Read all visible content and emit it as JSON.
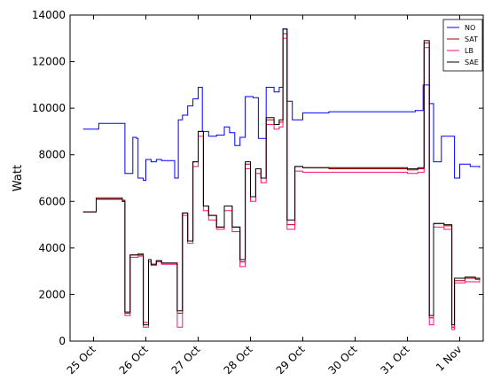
{
  "chart_data": {
    "type": "line",
    "title": "",
    "xlabel": "",
    "ylabel": "Watt",
    "xlim": [
      24.55,
      32.45
    ],
    "ylim": [
      0,
      14000
    ],
    "yticks": [
      0,
      2000,
      4000,
      6000,
      8000,
      10000,
      12000,
      14000
    ],
    "xticks": [
      {
        "value": 25,
        "label": "25 Oct"
      },
      {
        "value": 26,
        "label": "26 Oct"
      },
      {
        "value": 27,
        "label": "27 Oct"
      },
      {
        "value": 28,
        "label": "28 Oct"
      },
      {
        "value": 29,
        "label": "29 Oct"
      },
      {
        "value": 30,
        "label": "30 Oct"
      },
      {
        "value": 31,
        "label": "31 Oct"
      },
      {
        "value": 32,
        "label": "1 Nov"
      }
    ],
    "grid": false,
    "legend_position": "top-right",
    "series": [
      {
        "name": "NO",
        "color": "#0000ff",
        "points": [
          [
            24.8,
            9100
          ],
          [
            25.0,
            9100
          ],
          [
            25.1,
            9350
          ],
          [
            25.55,
            9350
          ],
          [
            25.6,
            7200
          ],
          [
            25.7,
            7200
          ],
          [
            25.75,
            8750
          ],
          [
            25.82,
            8700
          ],
          [
            25.85,
            7000
          ],
          [
            25.95,
            6900
          ],
          [
            26.0,
            7800
          ],
          [
            26.1,
            7700
          ],
          [
            26.2,
            7800
          ],
          [
            26.3,
            7750
          ],
          [
            26.5,
            7750
          ],
          [
            26.55,
            7000
          ],
          [
            26.62,
            9500
          ],
          [
            26.7,
            9700
          ],
          [
            26.8,
            10100
          ],
          [
            26.9,
            10400
          ],
          [
            27.0,
            10900
          ],
          [
            27.08,
            9000
          ],
          [
            27.2,
            8800
          ],
          [
            27.35,
            8850
          ],
          [
            27.5,
            9200
          ],
          [
            27.6,
            8950
          ],
          [
            27.7,
            8400
          ],
          [
            27.8,
            8750
          ],
          [
            27.9,
            10500
          ],
          [
            28.05,
            10450
          ],
          [
            28.15,
            8700
          ],
          [
            28.3,
            10900
          ],
          [
            28.45,
            10700
          ],
          [
            28.55,
            10900
          ],
          [
            28.62,
            13400
          ],
          [
            28.7,
            10300
          ],
          [
            28.8,
            9500
          ],
          [
            29.0,
            9800
          ],
          [
            29.5,
            9850
          ],
          [
            30.0,
            9850
          ],
          [
            30.5,
            9850
          ],
          [
            31.0,
            9850
          ],
          [
            31.15,
            9900
          ],
          [
            31.3,
            11000
          ],
          [
            31.42,
            10200
          ],
          [
            31.5,
            7700
          ],
          [
            31.65,
            8800
          ],
          [
            31.8,
            8800
          ],
          [
            31.9,
            7000
          ],
          [
            32.0,
            7600
          ],
          [
            32.2,
            7500
          ],
          [
            32.38,
            7450
          ]
        ]
      },
      {
        "name": "SAT",
        "color": "#aa0000",
        "points": [
          [
            24.8,
            5550
          ],
          [
            25.0,
            5550
          ],
          [
            25.05,
            6150
          ],
          [
            25.5,
            6150
          ],
          [
            25.55,
            6050
          ],
          [
            25.6,
            1200
          ],
          [
            25.7,
            3700
          ],
          [
            25.85,
            3750
          ],
          [
            25.95,
            800
          ],
          [
            26.05,
            3500
          ],
          [
            26.1,
            3300
          ],
          [
            26.2,
            3450
          ],
          [
            26.3,
            3350
          ],
          [
            26.55,
            3350
          ],
          [
            26.6,
            1200
          ],
          [
            26.7,
            5500
          ],
          [
            26.8,
            4300
          ],
          [
            26.9,
            7700
          ],
          [
            27.0,
            9000
          ],
          [
            27.1,
            5800
          ],
          [
            27.2,
            5400
          ],
          [
            27.35,
            4900
          ],
          [
            27.5,
            5800
          ],
          [
            27.65,
            4900
          ],
          [
            27.8,
            3400
          ],
          [
            27.9,
            7600
          ],
          [
            28.0,
            6200
          ],
          [
            28.1,
            7400
          ],
          [
            28.2,
            7000
          ],
          [
            28.3,
            9500
          ],
          [
            28.45,
            9300
          ],
          [
            28.55,
            9400
          ],
          [
            28.62,
            13200
          ],
          [
            28.7,
            5000
          ],
          [
            28.85,
            7500
          ],
          [
            29.0,
            7450
          ],
          [
            29.5,
            7400
          ],
          [
            30.0,
            7400
          ],
          [
            30.5,
            7400
          ],
          [
            31.0,
            7350
          ],
          [
            31.2,
            7400
          ],
          [
            31.32,
            12800
          ],
          [
            31.42,
            1000
          ],
          [
            31.5,
            5050
          ],
          [
            31.7,
            4950
          ],
          [
            31.85,
            600
          ],
          [
            31.9,
            2600
          ],
          [
            32.1,
            2700
          ],
          [
            32.3,
            2650
          ],
          [
            32.38,
            2600
          ]
        ]
      },
      {
        "name": "LB",
        "color": "#ff1177",
        "points": [
          [
            24.8,
            5550
          ],
          [
            25.0,
            5550
          ],
          [
            25.05,
            6100
          ],
          [
            25.5,
            6100
          ],
          [
            25.55,
            6000
          ],
          [
            25.6,
            1100
          ],
          [
            25.7,
            3600
          ],
          [
            25.85,
            3650
          ],
          [
            25.95,
            600
          ],
          [
            26.05,
            3400
          ],
          [
            26.1,
            3250
          ],
          [
            26.2,
            3400
          ],
          [
            26.3,
            3300
          ],
          [
            26.55,
            3300
          ],
          [
            26.6,
            600
          ],
          [
            26.7,
            5400
          ],
          [
            26.8,
            4200
          ],
          [
            26.9,
            7500
          ],
          [
            27.0,
            8800
          ],
          [
            27.1,
            5600
          ],
          [
            27.2,
            5200
          ],
          [
            27.35,
            4800
          ],
          [
            27.5,
            5600
          ],
          [
            27.65,
            4700
          ],
          [
            27.8,
            3200
          ],
          [
            27.9,
            7400
          ],
          [
            28.0,
            6000
          ],
          [
            28.1,
            7200
          ],
          [
            28.2,
            6800
          ],
          [
            28.3,
            9300
          ],
          [
            28.45,
            9100
          ],
          [
            28.55,
            9200
          ],
          [
            28.62,
            13000
          ],
          [
            28.7,
            4800
          ],
          [
            28.85,
            7300
          ],
          [
            29.0,
            7250
          ],
          [
            29.5,
            7250
          ],
          [
            30.0,
            7250
          ],
          [
            30.5,
            7250
          ],
          [
            31.0,
            7200
          ],
          [
            31.2,
            7250
          ],
          [
            31.32,
            12600
          ],
          [
            31.42,
            700
          ],
          [
            31.5,
            4900
          ],
          [
            31.7,
            4800
          ],
          [
            31.85,
            500
          ],
          [
            31.9,
            2500
          ],
          [
            32.1,
            2550
          ],
          [
            32.3,
            2550
          ],
          [
            32.38,
            2500
          ]
        ]
      },
      {
        "name": "SAE",
        "color": "#000000",
        "points": [
          [
            24.8,
            5550
          ],
          [
            25.0,
            5550
          ],
          [
            25.05,
            6100
          ],
          [
            25.5,
            6100
          ],
          [
            25.55,
            6000
          ],
          [
            25.6,
            1250
          ],
          [
            25.7,
            3700
          ],
          [
            25.85,
            3700
          ],
          [
            25.95,
            700
          ],
          [
            26.05,
            3500
          ],
          [
            26.1,
            3300
          ],
          [
            26.2,
            3450
          ],
          [
            26.3,
            3350
          ],
          [
            26.55,
            3350
          ],
          [
            26.6,
            1300
          ],
          [
            26.7,
            5500
          ],
          [
            26.8,
            4300
          ],
          [
            26.9,
            7700
          ],
          [
            27.0,
            9000
          ],
          [
            27.1,
            5800
          ],
          [
            27.2,
            5400
          ],
          [
            27.35,
            4900
          ],
          [
            27.5,
            5800
          ],
          [
            27.65,
            4900
          ],
          [
            27.8,
            3500
          ],
          [
            27.9,
            7700
          ],
          [
            28.0,
            6200
          ],
          [
            28.1,
            7400
          ],
          [
            28.2,
            7000
          ],
          [
            28.3,
            9600
          ],
          [
            28.45,
            9300
          ],
          [
            28.55,
            9500
          ],
          [
            28.62,
            13400
          ],
          [
            28.7,
            5200
          ],
          [
            28.85,
            7500
          ],
          [
            29.0,
            7450
          ],
          [
            29.5,
            7450
          ],
          [
            30.0,
            7450
          ],
          [
            30.5,
            7450
          ],
          [
            31.0,
            7400
          ],
          [
            31.2,
            7450
          ],
          [
            31.32,
            12900
          ],
          [
            31.42,
            1100
          ],
          [
            31.5,
            5050
          ],
          [
            31.7,
            5000
          ],
          [
            31.85,
            700
          ],
          [
            31.9,
            2700
          ],
          [
            32.1,
            2750
          ],
          [
            32.3,
            2700
          ],
          [
            32.38,
            2650
          ]
        ]
      }
    ]
  }
}
